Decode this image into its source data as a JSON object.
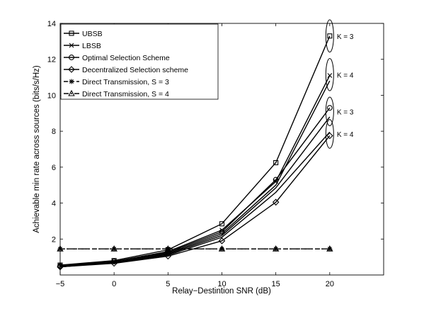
{
  "chart_data": {
    "type": "line",
    "xlabel": "Relay−Destintion SNR (dB)",
    "ylabel": "Achievable min rate across sources (bits/s/Hz)",
    "xlim": [
      -5,
      25
    ],
    "ylim": [
      0,
      14
    ],
    "x_ticks": [
      -5,
      0,
      5,
      10,
      15,
      20
    ],
    "x_tick_labels": [
      "−5",
      "0",
      "5",
      "10",
      "15",
      "20"
    ],
    "y_ticks": [
      2,
      4,
      6,
      8,
      10,
      12,
      14
    ],
    "y_tick_labels": [
      "2",
      "4",
      "6",
      "8",
      "10",
      "12",
      "14"
    ],
    "grid": false,
    "legend_position": "top-left",
    "x": [
      -5,
      0,
      5,
      10,
      15,
      20
    ],
    "series": [
      {
        "name": "UBSB",
        "marker": "square",
        "line": "solid",
        "values": [
          0.55,
          0.8,
          1.4,
          2.85,
          6.25,
          13.3
        ]
      },
      {
        "name": "LBSB",
        "marker": "x",
        "line": "solid",
        "values": [
          0.5,
          0.75,
          1.3,
          2.5,
          5.2,
          11.1
        ]
      },
      {
        "name": "Optimal Selection Scheme",
        "marker": "circle",
        "line": "solid",
        "values": [
          0.5,
          0.75,
          1.25,
          2.4,
          5.3,
          9.3
        ]
      },
      {
        "name": "Decentralized Selection scheme",
        "marker": "diamond",
        "line": "solid",
        "values": [
          0.45,
          0.65,
          1.05,
          1.9,
          4.05,
          7.75
        ]
      },
      {
        "name": "Direct Transmission, S = 3",
        "marker": "star",
        "line": "dashed",
        "values": [
          1.45,
          1.45,
          1.45,
          1.45,
          1.45,
          1.45
        ]
      },
      {
        "name": "Direct Transmission, S = 4",
        "marker": "triangle",
        "line": "dashdot",
        "values": [
          1.45,
          1.45,
          1.45,
          1.45,
          1.45,
          1.45
        ]
      }
    ],
    "extra_lines": [
      {
        "marker": "none",
        "line": "solid",
        "values": [
          0.45,
          0.7,
          1.15,
          2.2,
          4.85,
          8.8
        ]
      },
      {
        "marker": "none",
        "line": "solid",
        "values": [
          0.45,
          0.7,
          1.1,
          2.1,
          4.6,
          7.95
        ]
      },
      {
        "marker": "none",
        "line": "solid",
        "values": [
          0.45,
          0.7,
          1.2,
          2.3,
          5.0,
          10.8
        ]
      }
    ],
    "annotations": [
      {
        "text": "K = 3",
        "x": 20,
        "y": 13.3,
        "ellipse_height": 1.8
      },
      {
        "text": "K = 4",
        "x": 20,
        "y": 11.15,
        "ellipse_height": 1.8
      },
      {
        "text": "K = 3",
        "x": 20,
        "y": 9.1,
        "ellipse_height": 1.6
      },
      {
        "text": "K = 4",
        "x": 20,
        "y": 7.85,
        "ellipse_height": 1.6
      }
    ]
  }
}
